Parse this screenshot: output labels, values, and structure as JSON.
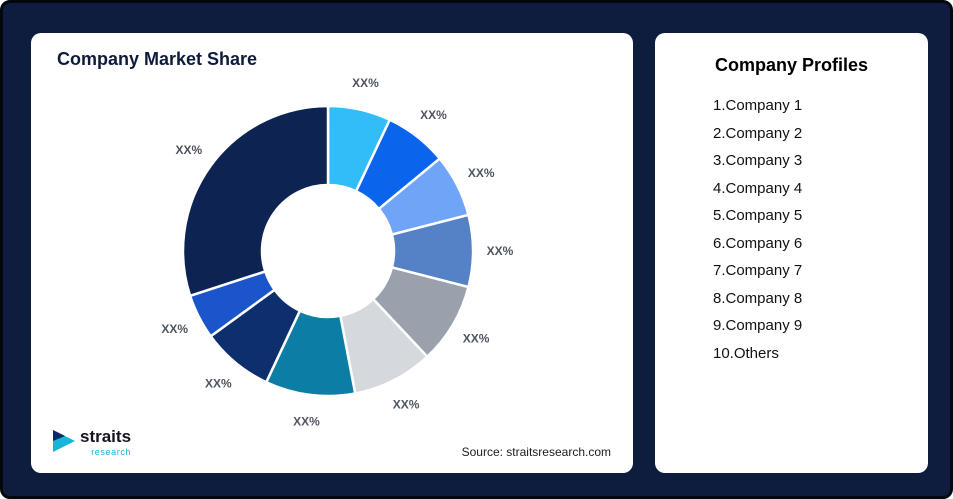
{
  "frame": {
    "background": "#0E1D3D"
  },
  "left_card": {
    "title": "Company Market Share",
    "source": "Source: straitsresearch.com",
    "logo": {
      "name": "straits",
      "sub": "research",
      "accent": "#17b5d6",
      "dark": "#0e2a66"
    }
  },
  "right_card": {
    "title": "Company Profiles",
    "items": [
      "1.Company 1",
      "2.Company 2",
      "3.Company 3",
      "4.Company 4",
      "5.Company 5",
      "6.Company 6",
      "7.Company 7",
      "8.Company 8",
      "9.Company 9",
      "10.Others"
    ]
  },
  "chart_data": {
    "type": "pie",
    "subtype": "donut",
    "title": "Company Market Share",
    "start_angle_deg": 0,
    "direction": "clockwise",
    "inner_radius_ratio": 0.455,
    "categories": [
      "Company 1",
      "Company 2",
      "Company 3",
      "Company 4",
      "Company 5",
      "Company 6",
      "Company 7",
      "Company 8",
      "Company 9",
      "Others"
    ],
    "labels": [
      "XX%",
      "XX%",
      "XX%",
      "XX%",
      "XX%",
      "XX%",
      "XX%",
      "XX%",
      "XX%",
      "XX%"
    ],
    "values": [
      7,
      7,
      7,
      8,
      9,
      9,
      10,
      8,
      5,
      30
    ],
    "colors": [
      "#33BDF8",
      "#0A64EC",
      "#6FA4F6",
      "#5581C6",
      "#99A1AD",
      "#D5D9DE",
      "#0C7EA5",
      "#0D2F6E",
      "#1C55CB",
      "#0D2453"
    ],
    "label_color": "#4e5560",
    "legend": "none"
  }
}
